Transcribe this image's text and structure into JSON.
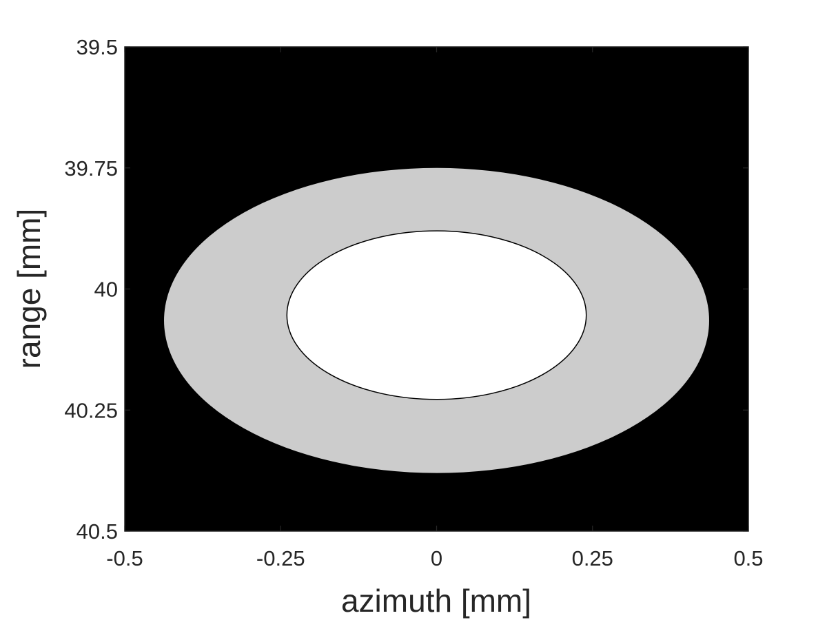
{
  "chart_data": {
    "type": "contour",
    "title": "",
    "xlabel": "azimuth [mm]",
    "ylabel": "range [mm]",
    "xlim": [
      -0.5,
      0.5
    ],
    "ylim": [
      39.5,
      40.5
    ],
    "y_reversed": true,
    "xticks": [
      -0.5,
      -0.25,
      0,
      0.25,
      0.5
    ],
    "xtick_labels": [
      "-0.5",
      "-0.25",
      "0",
      "0.25",
      "0.5"
    ],
    "yticks": [
      39.5,
      39.75,
      40,
      40.25,
      40.5
    ],
    "ytick_labels": [
      "39.5",
      "39.75",
      "40",
      "40.25",
      "40.5"
    ],
    "grid": false,
    "background_color": "#000000",
    "regions": [
      {
        "level": "outer",
        "color": "#cccccc",
        "center": [
          0,
          40.065
        ],
        "semi_axes": [
          0.437,
          0.315
        ],
        "outline": false
      },
      {
        "level": "inner",
        "color": "#ffffff",
        "center": [
          0,
          40.054
        ],
        "semi_axes": [
          0.24,
          0.174
        ],
        "outline": true,
        "outline_color": "#000000"
      }
    ]
  }
}
